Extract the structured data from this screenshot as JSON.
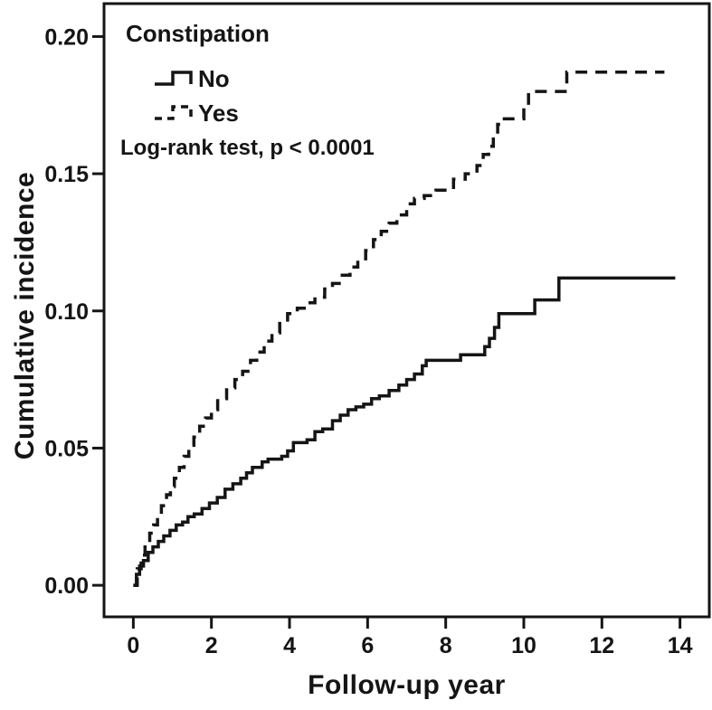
{
  "figure": {
    "background_color": "#ffffff",
    "ink_color": "#151515"
  },
  "chart_data": {
    "type": "line",
    "subtype": "step-cumulative-incidence",
    "title": "",
    "xlabel": "Follow-up year",
    "ylabel": "Cumulative incidence",
    "legend_title": "Constipation",
    "legend_position": "top-left-inside",
    "annotation": "Log-rank test, p < 0.0001",
    "grid": false,
    "xlim": [
      -0.75,
      14.75
    ],
    "ylim": [
      -0.0115,
      0.212
    ],
    "xticks": [
      "0",
      "2",
      "4",
      "6",
      "8",
      "10",
      "12",
      "14"
    ],
    "xtick_values": [
      0,
      2,
      4,
      6,
      8,
      10,
      12,
      14
    ],
    "yticks": [
      "0.00",
      "0.05",
      "0.10",
      "0.15",
      "0.20"
    ],
    "ytick_values": [
      0,
      0.05,
      0.1,
      0.15,
      0.2
    ],
    "series": [
      {
        "name": "No",
        "style": "solid",
        "points": [
          [
            0,
            0.0
          ],
          [
            0.08,
            0.004
          ],
          [
            0.16,
            0.007
          ],
          [
            0.26,
            0.009
          ],
          [
            0.38,
            0.012
          ],
          [
            0.5,
            0.014
          ],
          [
            0.64,
            0.016
          ],
          [
            0.78,
            0.018
          ],
          [
            0.94,
            0.02
          ],
          [
            1.1,
            0.022
          ],
          [
            1.26,
            0.023
          ],
          [
            1.4,
            0.025
          ],
          [
            1.56,
            0.026
          ],
          [
            1.76,
            0.028
          ],
          [
            1.95,
            0.03
          ],
          [
            2.15,
            0.032
          ],
          [
            2.35,
            0.035
          ],
          [
            2.55,
            0.037
          ],
          [
            2.75,
            0.039
          ],
          [
            2.9,
            0.041
          ],
          [
            3.05,
            0.043
          ],
          [
            3.3,
            0.045
          ],
          [
            3.45,
            0.046
          ],
          [
            3.8,
            0.047
          ],
          [
            3.95,
            0.049
          ],
          [
            4.1,
            0.052
          ],
          [
            4.45,
            0.053
          ],
          [
            4.65,
            0.056
          ],
          [
            4.85,
            0.057
          ],
          [
            5.1,
            0.06
          ],
          [
            5.3,
            0.062
          ],
          [
            5.5,
            0.064
          ],
          [
            5.7,
            0.065
          ],
          [
            5.9,
            0.066
          ],
          [
            6.1,
            0.068
          ],
          [
            6.3,
            0.069
          ],
          [
            6.55,
            0.071
          ],
          [
            6.8,
            0.073
          ],
          [
            7.0,
            0.075
          ],
          [
            7.2,
            0.077
          ],
          [
            7.4,
            0.08
          ],
          [
            7.5,
            0.082
          ],
          [
            8.38,
            0.084
          ],
          [
            9.0,
            0.087
          ],
          [
            9.12,
            0.09
          ],
          [
            9.25,
            0.094
          ],
          [
            9.36,
            0.099
          ],
          [
            10.28,
            0.104
          ],
          [
            10.9,
            0.112
          ],
          [
            13.88,
            0.112
          ]
        ]
      },
      {
        "name": "Yes",
        "style": "dashed",
        "points": [
          [
            0,
            0.0
          ],
          [
            0.1,
            0.006
          ],
          [
            0.2,
            0.011
          ],
          [
            0.3,
            0.015
          ],
          [
            0.42,
            0.019
          ],
          [
            0.52,
            0.022
          ],
          [
            0.62,
            0.025
          ],
          [
            0.72,
            0.029
          ],
          [
            0.85,
            0.033
          ],
          [
            0.95,
            0.036
          ],
          [
            1.05,
            0.039
          ],
          [
            1.18,
            0.043
          ],
          [
            1.3,
            0.047
          ],
          [
            1.42,
            0.051
          ],
          [
            1.55,
            0.054
          ],
          [
            1.7,
            0.058
          ],
          [
            1.85,
            0.061
          ],
          [
            2.0,
            0.064
          ],
          [
            2.16,
            0.068
          ],
          [
            2.39,
            0.072
          ],
          [
            2.6,
            0.075
          ],
          [
            2.8,
            0.078
          ],
          [
            3.0,
            0.082
          ],
          [
            3.16,
            0.085
          ],
          [
            3.35,
            0.089
          ],
          [
            3.55,
            0.092
          ],
          [
            3.75,
            0.096
          ],
          [
            3.95,
            0.099
          ],
          [
            4.2,
            0.101
          ],
          [
            4.45,
            0.103
          ],
          [
            4.65,
            0.105
          ],
          [
            4.9,
            0.108
          ],
          [
            5.1,
            0.11
          ],
          [
            5.35,
            0.113
          ],
          [
            5.55,
            0.116
          ],
          [
            5.75,
            0.119
          ],
          [
            5.95,
            0.122
          ],
          [
            6.15,
            0.126
          ],
          [
            6.35,
            0.129
          ],
          [
            6.55,
            0.132
          ],
          [
            6.75,
            0.135
          ],
          [
            7.0,
            0.139
          ],
          [
            7.2,
            0.141
          ],
          [
            7.45,
            0.142
          ],
          [
            7.75,
            0.144
          ],
          [
            8.2,
            0.148
          ],
          [
            8.5,
            0.15
          ],
          [
            8.8,
            0.153
          ],
          [
            8.96,
            0.157
          ],
          [
            9.1,
            0.16
          ],
          [
            9.22,
            0.164
          ],
          [
            9.33,
            0.168
          ],
          [
            9.42,
            0.17
          ],
          [
            10.0,
            0.175
          ],
          [
            10.12,
            0.18
          ],
          [
            11.1,
            0.187
          ],
          [
            13.6,
            0.187
          ]
        ]
      }
    ]
  }
}
